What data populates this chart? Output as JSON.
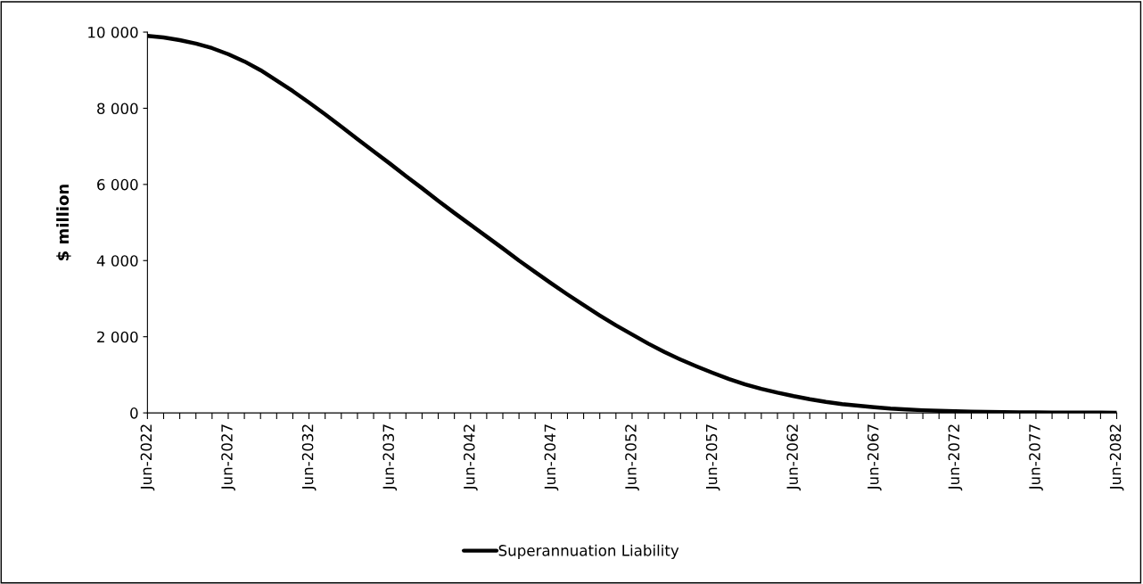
{
  "chart_data": {
    "type": "line",
    "ylabel": "$ million",
    "categories": [
      "Jun-2022",
      null,
      null,
      null,
      null,
      "Jun-2027",
      null,
      null,
      null,
      null,
      "Jun-2032",
      null,
      null,
      null,
      null,
      "Jun-2037",
      null,
      null,
      null,
      null,
      "Jun-2042",
      null,
      null,
      null,
      null,
      "Jun-2047",
      null,
      null,
      null,
      null,
      "Jun-2052",
      null,
      null,
      null,
      null,
      "Jun-2057",
      null,
      null,
      null,
      null,
      "Jun-2062",
      null,
      null,
      null,
      null,
      "Jun-2067",
      null,
      null,
      null,
      null,
      "Jun-2072",
      null,
      null,
      null,
      null,
      "Jun-2077",
      null,
      null,
      null,
      null,
      "Jun-2082"
    ],
    "series": [
      {
        "name": "Superannuation Liability",
        "color": "#000000",
        "values": [
          9900,
          9860,
          9790,
          9700,
          9580,
          9420,
          9230,
          9000,
          8730,
          8450,
          8150,
          7840,
          7520,
          7190,
          6870,
          6550,
          6220,
          5900,
          5570,
          5250,
          4940,
          4630,
          4320,
          4000,
          3700,
          3400,
          3110,
          2830,
          2560,
          2300,
          2060,
          1820,
          1600,
          1400,
          1220,
          1050,
          890,
          750,
          630,
          530,
          440,
          360,
          290,
          230,
          190,
          150,
          115,
          90,
          70,
          55,
          42,
          32,
          25,
          20,
          16,
          13,
          10,
          8,
          7,
          6,
          5
        ]
      }
    ],
    "ylim": [
      0,
      10000
    ],
    "yticks": [
      {
        "value": 0,
        "label": "0"
      },
      {
        "value": 2000,
        "label": "2 000"
      },
      {
        "value": 4000,
        "label": "4 000"
      },
      {
        "value": 6000,
        "label": "6 000"
      },
      {
        "value": 8000,
        "label": "8 000"
      },
      {
        "value": 10000,
        "label": "10 000"
      }
    ],
    "grid": false,
    "legend": "bottom",
    "line_style": "solid",
    "marker": "none"
  }
}
